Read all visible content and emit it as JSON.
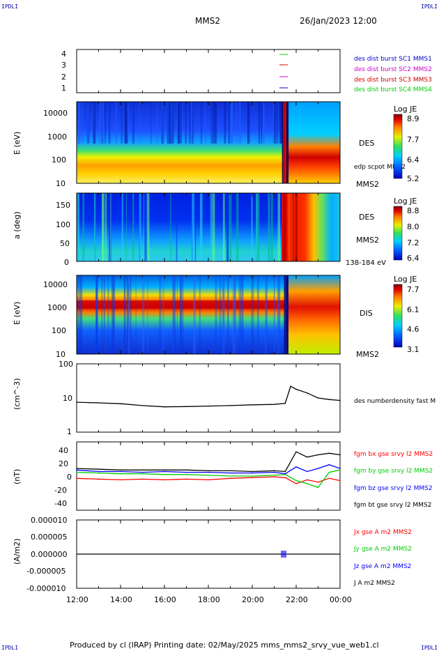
{
  "header": {
    "spacecraft": "MMS2",
    "datetime": "26/Jan/2023 12:00",
    "corner_tl": "IPDLI",
    "corner_tr": "IPDLI",
    "corner_bl": "IPDLI",
    "corner_br": "IPDLI"
  },
  "footer": {
    "text": "Produced by cl (IRAP)   Printing date: 02/May/2025   mms_mms2_srvy_vue_web1.cl"
  },
  "chart_data": [
    {
      "type": "line",
      "panel": "spacecraft-indicator",
      "yticks": [
        "4",
        "3",
        "2",
        "1"
      ],
      "legend": [
        {
          "label": "des dist burst SC1 MMS1",
          "color": "#0000cc"
        },
        {
          "label": "des dist burst SC2 MMS2",
          "color": "#cc00cc"
        },
        {
          "label": "des dist burst SC3 MMS3",
          "color": "#cc0000"
        },
        {
          "label": "des dist burst SC4 MMS4",
          "color": "#00cc00"
        }
      ],
      "burst_marks": [
        {
          "sc": 4,
          "x": "21:40",
          "color": "#00cc00"
        },
        {
          "sc": 3,
          "x": "21:40",
          "color": "#cc0000"
        },
        {
          "sc": 2,
          "x": "21:40",
          "color": "#cc00cc"
        },
        {
          "sc": 1,
          "x": "21:40",
          "color": "#0000cc"
        }
      ]
    },
    {
      "type": "heatmap",
      "panel": "des-energy-spectrogram",
      "ylabel": "E (eV)",
      "yscale": "log",
      "yticks": [
        "10000",
        "1000",
        "100",
        "10"
      ],
      "colorbar_title": "Log JE",
      "colorbar_ticks": [
        "8.9",
        "7.7",
        "6.4",
        "5.2"
      ],
      "labels": [
        "DES",
        "edp scpot MMS2",
        "MMS2"
      ]
    },
    {
      "type": "heatmap",
      "panel": "des-pitch-angle",
      "ylabel": "a (deg)",
      "yticks": [
        "150",
        "100",
        "50",
        "0"
      ],
      "colorbar_title": "Log JE",
      "colorbar_ticks": [
        "8.8",
        "8.0",
        "7.2",
        "6.4"
      ],
      "labels": [
        "DES",
        "MMS2",
        "138-184 eV"
      ]
    },
    {
      "type": "heatmap",
      "panel": "dis-energy-spectrogram",
      "ylabel": "E (eV)",
      "yscale": "log",
      "yticks": [
        "10000",
        "1000",
        "100",
        "10"
      ],
      "colorbar_title": "Log JE",
      "colorbar_ticks": [
        "7.7",
        "6.1",
        "4.6",
        "3.1"
      ],
      "labels": [
        "DIS",
        "MMS2"
      ]
    },
    {
      "type": "line",
      "panel": "density",
      "ylabel": "(cm^-3)",
      "yscale": "log",
      "ylim": [
        1,
        100
      ],
      "yticks": [
        "100",
        "10",
        "1"
      ],
      "series": [
        {
          "name": "des numberdensity fast M",
          "color": "#000000",
          "x": [
            "12:00",
            "13:00",
            "14:00",
            "15:00",
            "16:00",
            "17:00",
            "18:00",
            "19:00",
            "20:00",
            "21:00",
            "21:30",
            "21:45",
            "22:00",
            "22:30",
            "23:00",
            "23:30",
            "00:00"
          ],
          "values": [
            7.5,
            7.2,
            6.8,
            6.0,
            5.5,
            5.6,
            5.8,
            6.0,
            6.3,
            6.5,
            7.0,
            22,
            18,
            14,
            10,
            9,
            8.5
          ]
        }
      ]
    },
    {
      "type": "line",
      "panel": "magnetic-field",
      "ylabel": "(nT)",
      "ylim": [
        -45,
        45
      ],
      "yticks": [
        "40",
        "20",
        "0",
        "-20",
        "-40"
      ],
      "x": [
        "12:00",
        "13:00",
        "14:00",
        "15:00",
        "16:00",
        "17:00",
        "18:00",
        "19:00",
        "20:00",
        "21:00",
        "21:30",
        "22:00",
        "22:30",
        "23:00",
        "23:30",
        "00:00"
      ],
      "series": [
        {
          "name": "fgm bx gse srvy l2 MMS2",
          "color": "#ff0000",
          "values": [
            -3,
            -4,
            -5,
            -4,
            -5,
            -4,
            -5,
            -3,
            -2,
            -1,
            -2,
            -10,
            -5,
            -8,
            -3,
            -6
          ]
        },
        {
          "name": "fgm by gse srvy l2 MMS2",
          "color": "#00cc00",
          "values": [
            5,
            4,
            3,
            3,
            2,
            2,
            1,
            0,
            0,
            1,
            2,
            -6,
            -10,
            -15,
            5,
            8
          ]
        },
        {
          "name": "fgm bz gse srvy l2 MMS2",
          "color": "#0000ff",
          "values": [
            8,
            6,
            6,
            5,
            6,
            5,
            5,
            4,
            4,
            5,
            3,
            12,
            6,
            10,
            15,
            10
          ]
        },
        {
          "name": "fgm bt gse srvy l2 MMS2",
          "color": "#000000",
          "values": [
            10,
            9,
            8,
            8,
            8,
            8,
            7,
            7,
            6,
            7,
            6,
            32,
            25,
            28,
            30,
            28
          ]
        }
      ]
    },
    {
      "type": "line",
      "panel": "current-density",
      "ylabel": "(A/m2)",
      "ylim": [
        -1e-05,
        1e-05
      ],
      "yticks": [
        "0.000010",
        "0.000005",
        "0.000000",
        "-0.000005",
        "-0.000010"
      ],
      "series": [
        {
          "name": "Jx gse A m2 MMS2",
          "color": "#ff0000"
        },
        {
          "name": "Jy gse A m2 MMS2",
          "color": "#00cc00"
        },
        {
          "name": "Jz gse A m2 MMS2",
          "color": "#0000ff"
        },
        {
          "name": "J A m2 MMS2",
          "color": "#000000"
        }
      ]
    }
  ],
  "xaxis": {
    "ticks": [
      "12:00",
      "14:00",
      "16:00",
      "18:00",
      "20:00",
      "22:00",
      "00:00"
    ]
  }
}
